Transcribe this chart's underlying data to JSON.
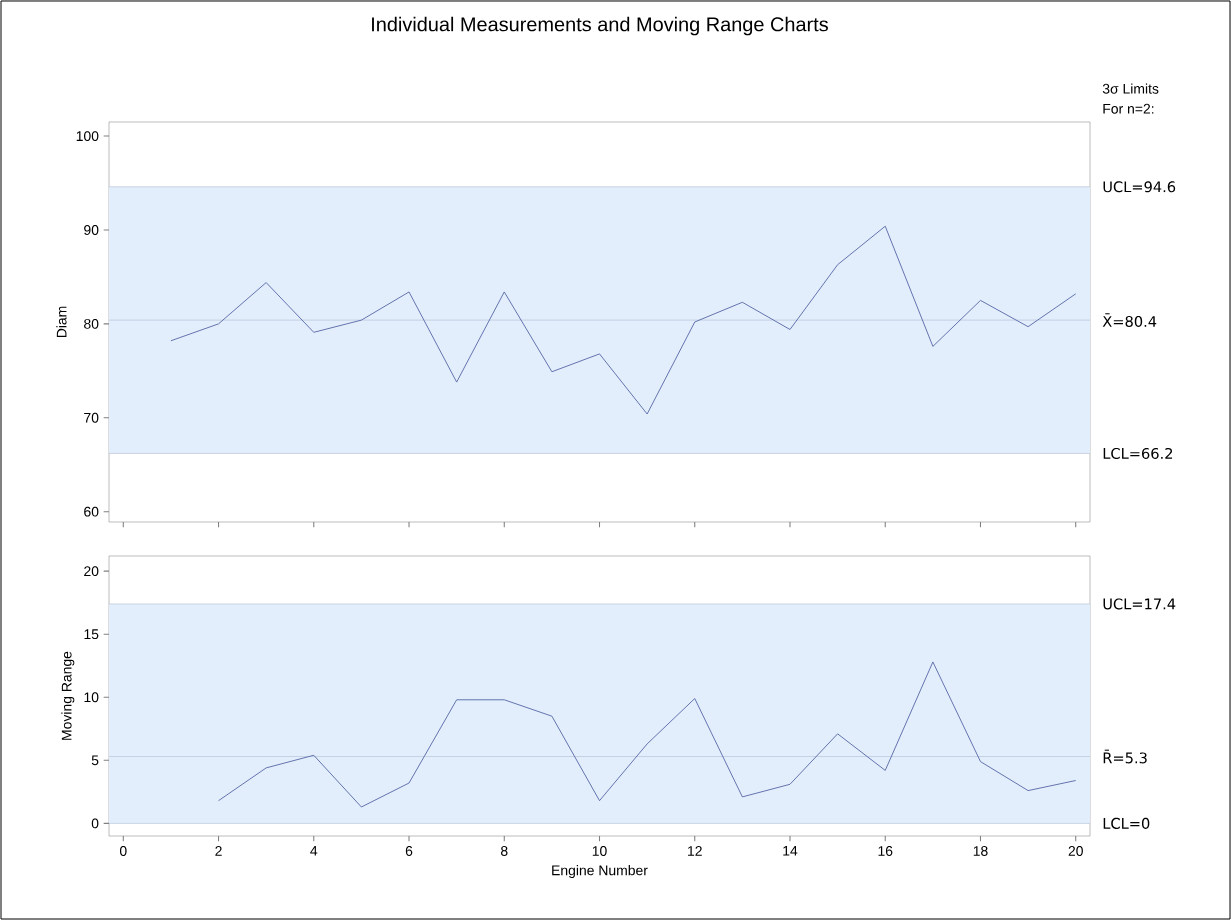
{
  "chart_data": [
    {
      "type": "line",
      "title": "Individual Measurements and Moving Range Charts",
      "ylabel": "Diam",
      "annotations": [
        "3σ Limits",
        "For n=2:"
      ],
      "x": [
        1,
        2,
        3,
        4,
        5,
        6,
        7,
        8,
        9,
        10,
        11,
        12,
        13,
        14,
        15,
        16,
        17,
        18,
        19,
        20
      ],
      "series": [
        {
          "color": "#5a6aa8",
          "values": [
            78.2,
            80.0,
            84.4,
            79.1,
            80.4,
            83.4,
            73.8,
            83.4,
            74.9,
            76.8,
            70.4,
            80.2,
            82.3,
            79.4,
            86.3,
            90.4,
            77.6,
            82.5,
            79.7,
            83.2
          ]
        }
      ],
      "xlim": [
        -0.3,
        20.3
      ],
      "xticks": [
        0,
        2,
        4,
        6,
        8,
        10,
        12,
        14,
        16,
        18,
        20
      ],
      "ylim": [
        58.9,
        101.5
      ],
      "yticks": [
        60,
        70,
        80,
        90,
        100
      ],
      "tick_labels": "y",
      "bands": [
        {
          "axis": "y",
          "from": 66.2,
          "to": 94.6,
          "color": "#e3eefc"
        }
      ],
      "ref_lines": [
        {
          "axis": "y",
          "value": 94.6,
          "label": "UCL=94.6",
          "color": "#a9b7d0"
        },
        {
          "axis": "y",
          "value": 80.4,
          "label": "X̄=80.4",
          "color": "#a9b7d0"
        },
        {
          "axis": "y",
          "value": 66.2,
          "label": "LCL=66.2",
          "color": "#a9b7d0"
        }
      ],
      "marker": "none",
      "line_style": "solid"
    },
    {
      "type": "line",
      "xlabel": "Engine Number",
      "ylabel": "Moving Range",
      "series": [
        {
          "color": "#5a6aa8",
          "x": [
            2,
            3,
            4,
            5,
            6,
            7,
            8,
            9,
            10,
            11,
            12,
            13,
            14,
            15,
            16,
            17,
            18,
            19,
            20
          ],
          "values": [
            1.8,
            4.4,
            5.4,
            1.3,
            3.2,
            9.8,
            9.8,
            8.5,
            1.8,
            6.3,
            9.9,
            2.1,
            3.1,
            7.1,
            4.2,
            12.8,
            4.9,
            2.6,
            3.4
          ]
        }
      ],
      "xlim": [
        -0.3,
        20.3
      ],
      "xticks": [
        0,
        2,
        4,
        6,
        8,
        10,
        12,
        14,
        16,
        18,
        20
      ],
      "ylim": [
        -1.0,
        21.2
      ],
      "yticks": [
        0,
        5,
        10,
        15,
        20
      ],
      "bands": [
        {
          "axis": "y",
          "from": 0,
          "to": 17.4,
          "color": "#e3eefc"
        }
      ],
      "ref_lines": [
        {
          "axis": "y",
          "value": 17.4,
          "label": "UCL=17.4",
          "color": "#a9b7d0"
        },
        {
          "axis": "y",
          "value": 5.3,
          "label": "R̄=5.3",
          "color": "#a9b7d0"
        },
        {
          "axis": "y",
          "value": 0,
          "label": "LCL=0",
          "color": "#a9b7d0"
        }
      ],
      "marker": "none",
      "line_style": "solid"
    }
  ]
}
